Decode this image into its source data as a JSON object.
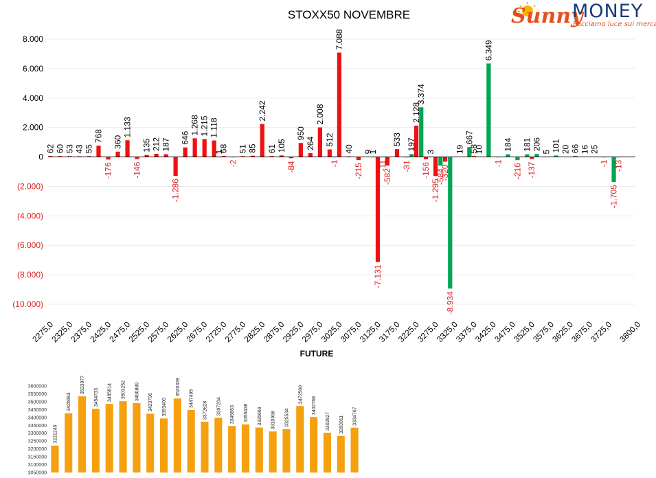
{
  "logo": {
    "brand_script": "Sunny",
    "brand_word": "MONEY",
    "tagline": "Facciamo luce sui mercati"
  },
  "chart_data": [
    {
      "type": "bar",
      "title": "STOXX50 NOVEMBRE",
      "ylim": [
        -10000,
        8000
      ],
      "y_ticks": [
        "8.000",
        "6.000",
        "4.000",
        "2.000",
        "0",
        "(2.000)",
        "(4.000)",
        "(6.000)",
        "(8.000)",
        "(10.000)"
      ],
      "y_tick_values": [
        8000,
        6000,
        4000,
        2000,
        0,
        -2000,
        -4000,
        -6000,
        -8000,
        -10000
      ],
      "x_range": [
        2275,
        3800
      ],
      "x_ticks": [
        "2275,0",
        "2325,0",
        "2375,0",
        "2425,0",
        "2475,0",
        "2525,0",
        "2575,0",
        "2625,0",
        "2675,0",
        "2725,0",
        "2775,0",
        "2825,0",
        "2875,0",
        "2925,0",
        "2975,0",
        "3025,0",
        "3075,0",
        "3125,0",
        "3175,0",
        "3225,0",
        "3275,0",
        "3325,0",
        "3375,0",
        "3425,0",
        "3475,0",
        "3525,0",
        "3575,0",
        "3625,0",
        "3675,0",
        "3725,0",
        "3800,0"
      ],
      "x_tick_values": [
        2275,
        2325,
        2375,
        2425,
        2475,
        2525,
        2575,
        2625,
        2675,
        2725,
        2775,
        2825,
        2875,
        2925,
        2975,
        3025,
        3075,
        3125,
        3175,
        3225,
        3275,
        3325,
        3375,
        3425,
        3475,
        3525,
        3575,
        3625,
        3675,
        3725,
        3800
      ],
      "grid": true,
      "series": [
        {
          "color": "#ee1111",
          "x": [
            2275,
            2300,
            2325,
            2350,
            2375,
            2400,
            2425,
            2450,
            2475,
            2500,
            2525,
            2550,
            2575,
            2600,
            2625,
            2650,
            2675,
            2700,
            2725,
            2750,
            2775,
            2800,
            2825,
            2850,
            2875,
            2900,
            2925,
            2950,
            2975,
            3000,
            3025,
            3050,
            3075,
            3100,
            3125,
            3150,
            3175,
            3200,
            3225,
            3250,
            3275,
            3300,
            3325,
            3350,
            3375,
            3400,
            3425,
            3450,
            3475,
            3500,
            3525,
            3550,
            3575,
            3600,
            3625,
            3650,
            3675,
            3700,
            3725,
            3750
          ],
          "values": [
            62,
            60,
            53,
            43,
            55,
            768,
            -176,
            360,
            1133,
            -146,
            135,
            212,
            187,
            -1286,
            646,
            1268,
            1215,
            1118,
            68,
            -2,
            51,
            85,
            2242,
            61,
            105,
            -84,
            950,
            264,
            2008,
            512,
            7088,
            40,
            -215,
            9,
            -7131,
            -582,
            533,
            -31,
            2128,
            -156,
            -1295,
            -320,
            null,
            null,
            58,
            null,
            null,
            null,
            null,
            null,
            -137,
            null,
            null,
            null,
            null,
            null,
            null,
            null,
            null,
            -13
          ],
          "labels": [
            "62",
            "60",
            "53",
            "43",
            "55",
            "768",
            "-176",
            "360",
            "1.133",
            "-146",
            "135",
            "212",
            "187",
            "-1.286",
            "646",
            "1.268",
            "1.215",
            "1.118",
            "68",
            "-2",
            "51",
            "85",
            "2.242",
            "61",
            "105",
            "-84",
            "950",
            "264",
            "2.008",
            "512",
            "7.088",
            "40",
            "-215",
            "9",
            "-7.131",
            "-582",
            "533",
            "-31",
            "2.128",
            "-156",
            "-1.295",
            "-320",
            "",
            "",
            "58",
            "",
            "",
            "",
            "",
            "",
            "-137",
            "",
            "",
            "",
            "",
            "",
            "",
            "",
            "",
            "-13"
          ]
        },
        {
          "color": "#00a651",
          "x": [
            2275,
            2300,
            2325,
            2350,
            2375,
            2400,
            2425,
            2450,
            2475,
            2500,
            2525,
            2550,
            2575,
            2600,
            2625,
            2650,
            2675,
            2700,
            2725,
            2750,
            2775,
            2800,
            2825,
            2850,
            2875,
            2900,
            2925,
            2950,
            2975,
            3000,
            3025,
            3050,
            3075,
            3100,
            3125,
            3150,
            3175,
            3200,
            3225,
            3250,
            3275,
            3300,
            3325,
            3350,
            3375,
            3400,
            3425,
            3450,
            3475,
            3500,
            3525,
            3550,
            3575,
            3600,
            3625,
            3650,
            3675,
            3700,
            3725,
            3750
          ],
          "values": [
            null,
            null,
            null,
            null,
            null,
            null,
            null,
            null,
            null,
            null,
            null,
            null,
            null,
            null,
            null,
            null,
            null,
            1,
            null,
            null,
            null,
            null,
            null,
            null,
            null,
            null,
            null,
            null,
            null,
            -1,
            null,
            null,
            null,
            1,
            -11,
            null,
            null,
            197,
            3374,
            3,
            -584,
            -8934,
            19,
            667,
            10,
            6349,
            -1,
            184,
            -216,
            181,
            206,
            5,
            101,
            20,
            66,
            16,
            25,
            -1,
            -1705,
            null
          ],
          "labels": [
            "",
            "",
            "",
            "",
            "",
            "",
            "",
            "",
            "",
            "",
            "",
            "",
            "",
            "",
            "",
            "",
            "",
            "1",
            "",
            "",
            "",
            "",
            "",
            "",
            "",
            "",
            "",
            "",
            "",
            "-1",
            "",
            "",
            "",
            "1",
            "-11",
            "",
            "",
            "197",
            "3.374",
            "3",
            "-584",
            "-8.934",
            "19",
            "667",
            "10",
            "6.349",
            "-1",
            "184",
            "-216",
            "181",
            "206",
            "5",
            "101",
            "20",
            "66",
            "16",
            "25",
            "-1",
            "-1.705",
            ""
          ]
        }
      ]
    },
    {
      "type": "bar",
      "title": "FUTURE",
      "ylim": [
        3050000,
        3600000
      ],
      "y_ticks": [
        "3600000",
        "3550000",
        "3500000",
        "3450000",
        "3400000",
        "3350000",
        "3300000",
        "3250000",
        "3200000",
        "3150000",
        "3100000",
        "3050000"
      ],
      "y_tick_values": [
        3600000,
        3550000,
        3500000,
        3450000,
        3400000,
        3350000,
        3300000,
        3250000,
        3200000,
        3150000,
        3100000,
        3050000
      ],
      "grid": false,
      "series": [
        {
          "color": "#f5a00f",
          "values": [
            3221249,
            3426683,
            3533977,
            3454733,
            3485814,
            3503252,
            3490889,
            3423706,
            3393400,
            3520339,
            3447495,
            3372628,
            3397204,
            3345663,
            3355438,
            3335669,
            3310998,
            3325534,
            3472560,
            3402768,
            3302827,
            3283011,
            3334767
          ],
          "labels": [
            "3221249",
            "3426683",
            "3533977",
            "3454733",
            "3485814",
            "3503252",
            "3490889",
            "3423706",
            "3393400",
            "3520339",
            "3447495",
            "3372628",
            "3397204",
            "3345663",
            "3355438",
            "3335669",
            "3310998",
            "3325534",
            "3472560",
            "3402768",
            "3302827",
            "3283011",
            "3334767"
          ]
        }
      ]
    }
  ]
}
